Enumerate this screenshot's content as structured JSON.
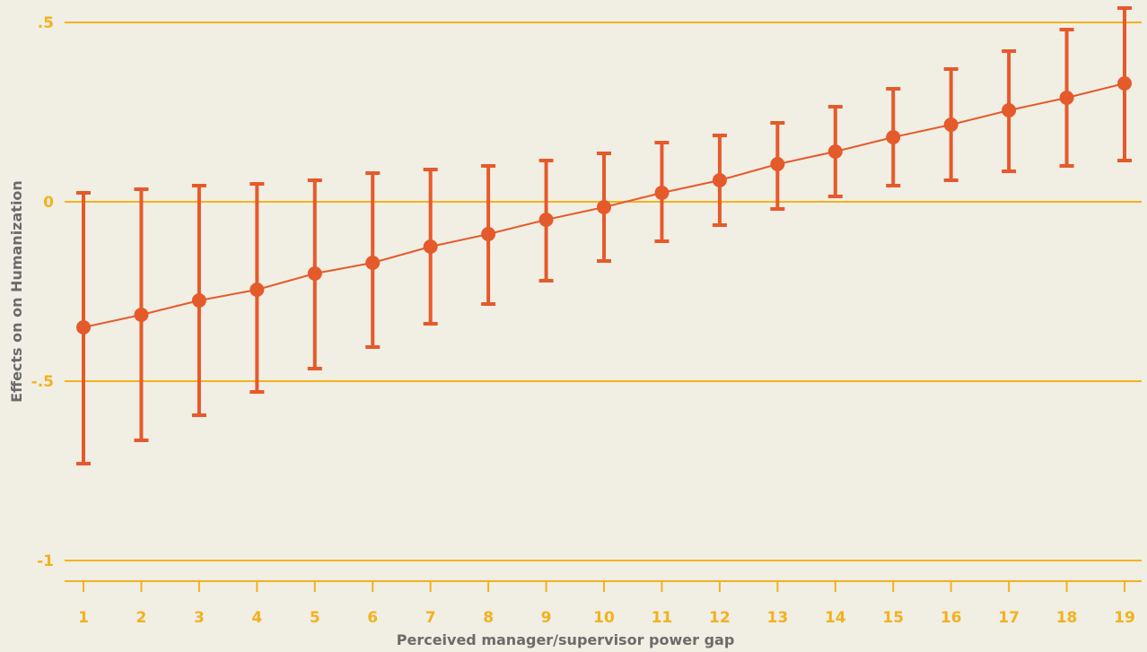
{
  "chart_data": {
    "type": "line",
    "xlabel": "Perceived manager/supervisor power gap",
    "ylabel": "Effects on on Humanization",
    "x": [
      1,
      2,
      3,
      4,
      5,
      6,
      7,
      8,
      9,
      10,
      11,
      12,
      13,
      14,
      15,
      16,
      17,
      18,
      19
    ],
    "x_tick_labels": [
      "1",
      "2",
      "3",
      "4",
      "5",
      "6",
      "7",
      "8",
      "9",
      "10",
      "11",
      "12",
      "13",
      "14",
      "15",
      "16",
      "17",
      "18",
      "19"
    ],
    "y_ticks": [
      0.5,
      0,
      -0.5,
      -1
    ],
    "y_tick_labels": [
      ".5",
      "0",
      "-.5",
      "-1"
    ],
    "ylim": [
      -1.03,
      0.55
    ],
    "grid": true,
    "series": [
      {
        "values": [
          -0.35,
          -0.315,
          -0.275,
          -0.245,
          -0.2,
          -0.17,
          -0.125,
          -0.09,
          -0.05,
          -0.015,
          0.025,
          0.06,
          0.105,
          0.14,
          0.18,
          0.215,
          0.255,
          0.29,
          0.33
        ],
        "lower": [
          -0.73,
          -0.665,
          -0.595,
          -0.53,
          -0.465,
          -0.405,
          -0.34,
          -0.285,
          -0.22,
          -0.165,
          -0.11,
          -0.065,
          -0.02,
          0.015,
          0.045,
          0.06,
          0.085,
          0.1,
          0.115
        ],
        "upper": [
          0.025,
          0.035,
          0.045,
          0.05,
          0.06,
          0.08,
          0.09,
          0.1,
          0.115,
          0.135,
          0.165,
          0.185,
          0.22,
          0.265,
          0.315,
          0.37,
          0.42,
          0.48,
          0.54
        ]
      }
    ],
    "colors": {
      "series": "#E55A2B",
      "grid": "#F2B21E",
      "axis_text": "#F2B21E",
      "title_text": "#6B6B6B",
      "background": "#F1EEE4"
    }
  }
}
